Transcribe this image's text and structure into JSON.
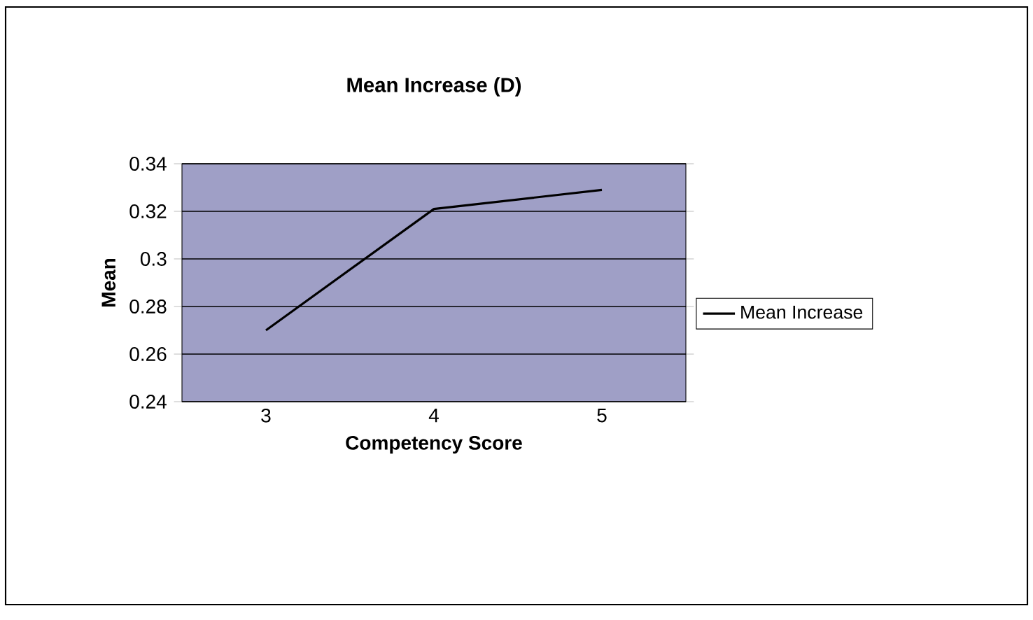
{
  "chart_data": {
    "type": "line",
    "title": "Mean Increase (D)",
    "xlabel": "Competency Score",
    "ylabel": "Mean",
    "categories": [
      "3",
      "4",
      "5"
    ],
    "series": [
      {
        "name": "Mean Increase",
        "color": "#000000",
        "values": [
          0.27,
          0.321,
          0.329
        ]
      }
    ],
    "ylim": [
      0.24,
      0.34
    ],
    "yticks": [
      0.24,
      0.26,
      0.28,
      0.3,
      0.32,
      0.34
    ],
    "grid": "y",
    "legend": "right",
    "marker": "none",
    "line_style": "solid"
  }
}
